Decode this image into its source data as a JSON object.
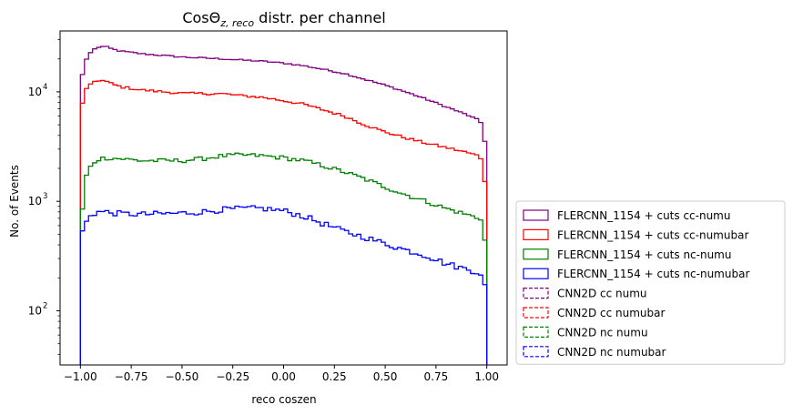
{
  "chart_data": {
    "type": "histogram",
    "title_main": "CosΘ",
    "title_sub": "z, reco",
    "title_rest": " distr. per channel",
    "xlabel": "reco coszen",
    "ylabel": "No. of Events",
    "xlim": [
      -1.1,
      1.1
    ],
    "ylim": [
      32,
      36000
    ],
    "yscale": "log",
    "x_ticks": [
      -1.0,
      -0.75,
      -0.5,
      -0.25,
      0.0,
      0.25,
      0.5,
      0.75,
      1.0
    ],
    "x_tick_labels": [
      "−1.00",
      "−0.75",
      "−0.50",
      "−0.25",
      "0.00",
      "0.25",
      "0.50",
      "0.75",
      "1.00"
    ],
    "y_ticks": [
      100,
      1000,
      10000
    ],
    "y_tick_labels": [
      "10",
      "10",
      "10"
    ],
    "y_tick_exponents": [
      "2",
      "3",
      "4"
    ],
    "legend_position": "outside-right-lower",
    "bin_range": [
      -1.0,
      1.0
    ],
    "n_bins": 100,
    "series": [
      {
        "name": "FLERCNN_1154 + cuts cc-numu",
        "color": "#800080",
        "style": "solid",
        "profile": [
          [
            -1.0,
            11500
          ],
          [
            -0.98,
            18000
          ],
          [
            -0.96,
            22000
          ],
          [
            -0.92,
            25500
          ],
          [
            -0.88,
            26000
          ],
          [
            -0.84,
            24500
          ],
          [
            -0.8,
            23500
          ],
          [
            -0.7,
            22300
          ],
          [
            -0.5,
            20800
          ],
          [
            -0.3,
            20000
          ],
          [
            -0.2,
            19500
          ],
          [
            -0.1,
            19000
          ],
          [
            0.0,
            18300
          ],
          [
            0.1,
            17300
          ],
          [
            0.2,
            16000
          ],
          [
            0.3,
            14700
          ],
          [
            0.4,
            13000
          ],
          [
            0.5,
            11500
          ],
          [
            0.6,
            10000
          ],
          [
            0.7,
            8600
          ],
          [
            0.8,
            7300
          ],
          [
            0.9,
            6200
          ],
          [
            0.96,
            5500
          ],
          [
            0.98,
            5000
          ],
          [
            1.0,
            2500
          ]
        ]
      },
      {
        "name": "FLERCNN_1154 + cuts cc-numubar",
        "color": "#ff0000",
        "style": "solid",
        "profile": [
          [
            -1.0,
            6200
          ],
          [
            -0.98,
            10000
          ],
          [
            -0.96,
            11500
          ],
          [
            -0.92,
            12800
          ],
          [
            -0.88,
            12600
          ],
          [
            -0.84,
            11700
          ],
          [
            -0.8,
            11100
          ],
          [
            -0.7,
            10400
          ],
          [
            -0.5,
            9700
          ],
          [
            -0.3,
            9600
          ],
          [
            -0.2,
            9200
          ],
          [
            -0.1,
            8900
          ],
          [
            0.0,
            8300
          ],
          [
            0.1,
            7700
          ],
          [
            0.2,
            6800
          ],
          [
            0.3,
            6000
          ],
          [
            0.4,
            5000
          ],
          [
            0.5,
            4300
          ],
          [
            0.6,
            3800
          ],
          [
            0.7,
            3400
          ],
          [
            0.8,
            3100
          ],
          [
            0.9,
            2800
          ],
          [
            0.96,
            2600
          ],
          [
            0.98,
            2300
          ],
          [
            1.0,
            1000
          ]
        ]
      },
      {
        "name": "FLERCNN_1154 + cuts nc-numu",
        "color": "#008000",
        "style": "solid",
        "profile": [
          [
            -1.0,
            480
          ],
          [
            -0.98,
            1500
          ],
          [
            -0.96,
            2000
          ],
          [
            -0.92,
            2400
          ],
          [
            -0.88,
            2500
          ],
          [
            -0.8,
            2450
          ],
          [
            -0.7,
            2350
          ],
          [
            -0.5,
            2350
          ],
          [
            -0.4,
            2450
          ],
          [
            -0.3,
            2600
          ],
          [
            -0.2,
            2650
          ],
          [
            -0.1,
            2600
          ],
          [
            0.0,
            2500
          ],
          [
            0.1,
            2350
          ],
          [
            0.2,
            2100
          ],
          [
            0.3,
            1850
          ],
          [
            0.4,
            1600
          ],
          [
            0.5,
            1350
          ],
          [
            0.6,
            1150
          ],
          [
            0.7,
            1000
          ],
          [
            0.8,
            860
          ],
          [
            0.9,
            760
          ],
          [
            0.96,
            700
          ],
          [
            0.98,
            650
          ],
          [
            1.0,
            300
          ]
        ]
      },
      {
        "name": "FLERCNN_1154 + cuts nc-numubar",
        "color": "#0000ff",
        "style": "solid",
        "profile": [
          [
            -1.0,
            480
          ],
          [
            -0.98,
            600
          ],
          [
            -0.96,
            720
          ],
          [
            -0.92,
            800
          ],
          [
            -0.88,
            800
          ],
          [
            -0.8,
            770
          ],
          [
            -0.7,
            760
          ],
          [
            -0.5,
            780
          ],
          [
            -0.4,
            800
          ],
          [
            -0.3,
            840
          ],
          [
            -0.2,
            860
          ],
          [
            -0.1,
            860
          ],
          [
            0.0,
            820
          ],
          [
            0.1,
            730
          ],
          [
            0.2,
            620
          ],
          [
            0.3,
            530
          ],
          [
            0.4,
            470
          ],
          [
            0.5,
            410
          ],
          [
            0.6,
            360
          ],
          [
            0.7,
            320
          ],
          [
            0.8,
            270
          ],
          [
            0.9,
            240
          ],
          [
            0.96,
            225
          ],
          [
            0.98,
            200
          ],
          [
            1.0,
            150
          ]
        ]
      },
      {
        "name": "CNN2D cc numu",
        "color": "#800080",
        "style": "dashed",
        "profile": []
      },
      {
        "name": "CNN2D cc numubar",
        "color": "#ff0000",
        "style": "dashed",
        "profile": []
      },
      {
        "name": "CNN2D nc numu",
        "color": "#008000",
        "style": "dashed",
        "profile": []
      },
      {
        "name": "CNN2D nc numubar",
        "color": "#0000ff",
        "style": "dashed",
        "profile": []
      }
    ]
  }
}
